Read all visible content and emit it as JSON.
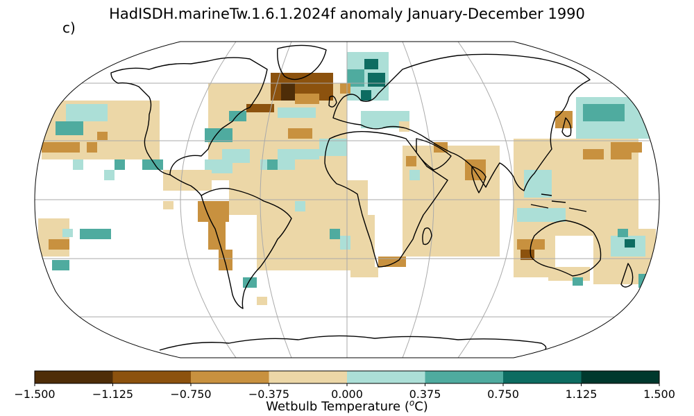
{
  "title": "HadISDH.marineTw.1.6.1.2024f anomaly January-December 1990",
  "panel_label": "c)",
  "colorbar": {
    "label_main": "Wetbulb Temperature (",
    "label_sup": "o",
    "label_end": "C)",
    "ticks": [
      "−1.500",
      "−1.125",
      "−0.750",
      "−0.375",
      "0.000",
      "0.375",
      "0.750",
      "1.125",
      "1.500"
    ],
    "colors": [
      "#4e2d08",
      "#8c520e",
      "#c8913f",
      "#ecd7a7",
      "#acdfd7",
      "#4fab9f",
      "#0d6c61",
      "#00382d"
    ]
  },
  "map_style": {
    "projection": "robinson",
    "gridlines": true,
    "coastline_color": "#000000",
    "grid_color": "#aaaaaa"
  }
}
